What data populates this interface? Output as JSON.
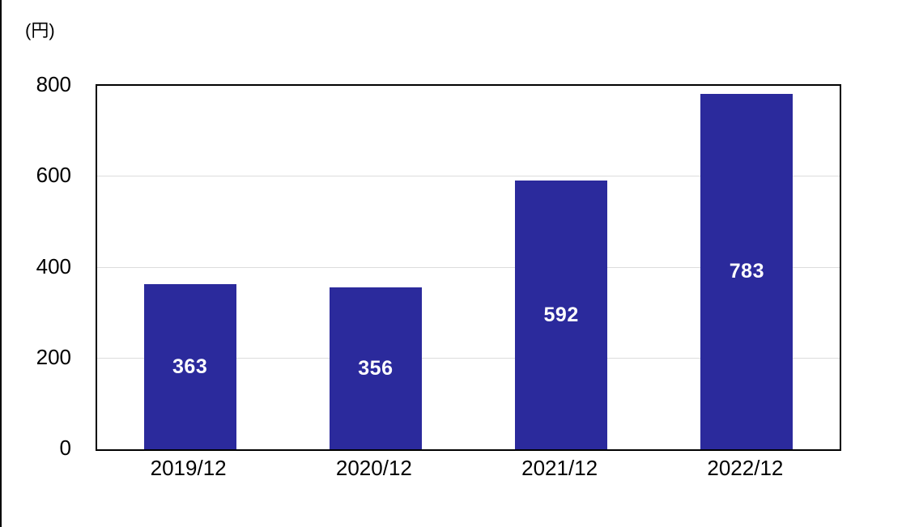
{
  "page": {
    "unit_label": "(円)"
  },
  "chart_data": {
    "type": "bar",
    "title": "",
    "xlabel": "",
    "ylabel": "(円)",
    "categories": [
      "2019/12",
      "2020/12",
      "2021/12",
      "2022/12"
    ],
    "values": [
      363,
      356,
      592,
      783
    ],
    "value_labels": [
      "363",
      "356",
      "592",
      "783"
    ],
    "ylim": [
      0,
      800
    ],
    "yticks": [
      0,
      200,
      400,
      600,
      800
    ],
    "grid": "horizontal-at-200-400-600",
    "legend": "none",
    "bar_color": "#2b2a9c",
    "value_label_color": "#ffffff",
    "gridline_color": "#dcdcdc",
    "axis_border_color": "#000000"
  }
}
